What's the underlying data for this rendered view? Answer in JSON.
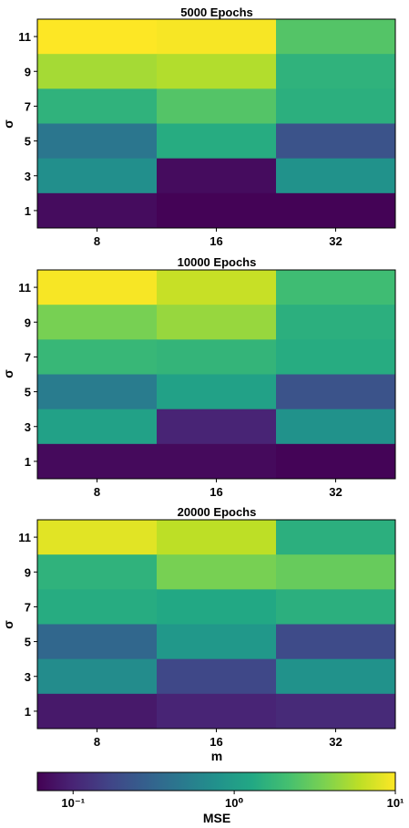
{
  "chart_data": [
    {
      "type": "heatmap",
      "title": "5000 Epochs",
      "xlabel": "",
      "ylabel": "σ",
      "x_categories": [
        "8",
        "16",
        "32"
      ],
      "y_categories": [
        "11",
        "9",
        "7",
        "5",
        "3",
        "1"
      ],
      "values": [
        [
          10.0,
          9.5,
          2.5
        ],
        [
          5.0,
          5.5,
          1.6
        ],
        [
          1.6,
          2.5,
          1.5
        ],
        [
          0.45,
          1.4,
          0.22
        ],
        [
          0.75,
          0.07,
          0.8
        ],
        [
          0.07,
          0.062,
          0.062
        ]
      ]
    },
    {
      "type": "heatmap",
      "title": "10000 Epochs",
      "xlabel": "",
      "ylabel": "σ",
      "x_categories": [
        "8",
        "16",
        "32"
      ],
      "y_categories": [
        "11",
        "9",
        "7",
        "5",
        "3",
        "1"
      ],
      "values": [
        [
          9.5,
          6.5,
          2.0
        ],
        [
          3.5,
          4.5,
          1.5
        ],
        [
          1.8,
          1.7,
          1.4
        ],
        [
          0.5,
          1.1,
          0.22
        ],
        [
          1.1,
          0.1,
          0.8
        ],
        [
          0.068,
          0.068,
          0.063
        ]
      ]
    },
    {
      "type": "heatmap",
      "title": "20000 Epochs",
      "xlabel": "m",
      "ylabel": "σ",
      "x_categories": [
        "8",
        "16",
        "32"
      ],
      "y_categories": [
        "11",
        "9",
        "7",
        "5",
        "3",
        "1"
      ],
      "values": [
        [
          8.0,
          6.0,
          1.5
        ],
        [
          1.6,
          3.5,
          3.0
        ],
        [
          1.4,
          1.3,
          1.5
        ],
        [
          0.33,
          0.9,
          0.19
        ],
        [
          0.7,
          0.18,
          0.8
        ],
        [
          0.085,
          0.1,
          0.11
        ]
      ]
    },
    {
      "type": "colorbar",
      "label": "MSE",
      "scale": "log",
      "colormap": "viridis",
      "range": [
        0.06,
        10
      ],
      "tick_labels": [
        "10⁻¹",
        "10⁰",
        "10¹"
      ],
      "tick_values": [
        0.1,
        1,
        10
      ]
    }
  ]
}
